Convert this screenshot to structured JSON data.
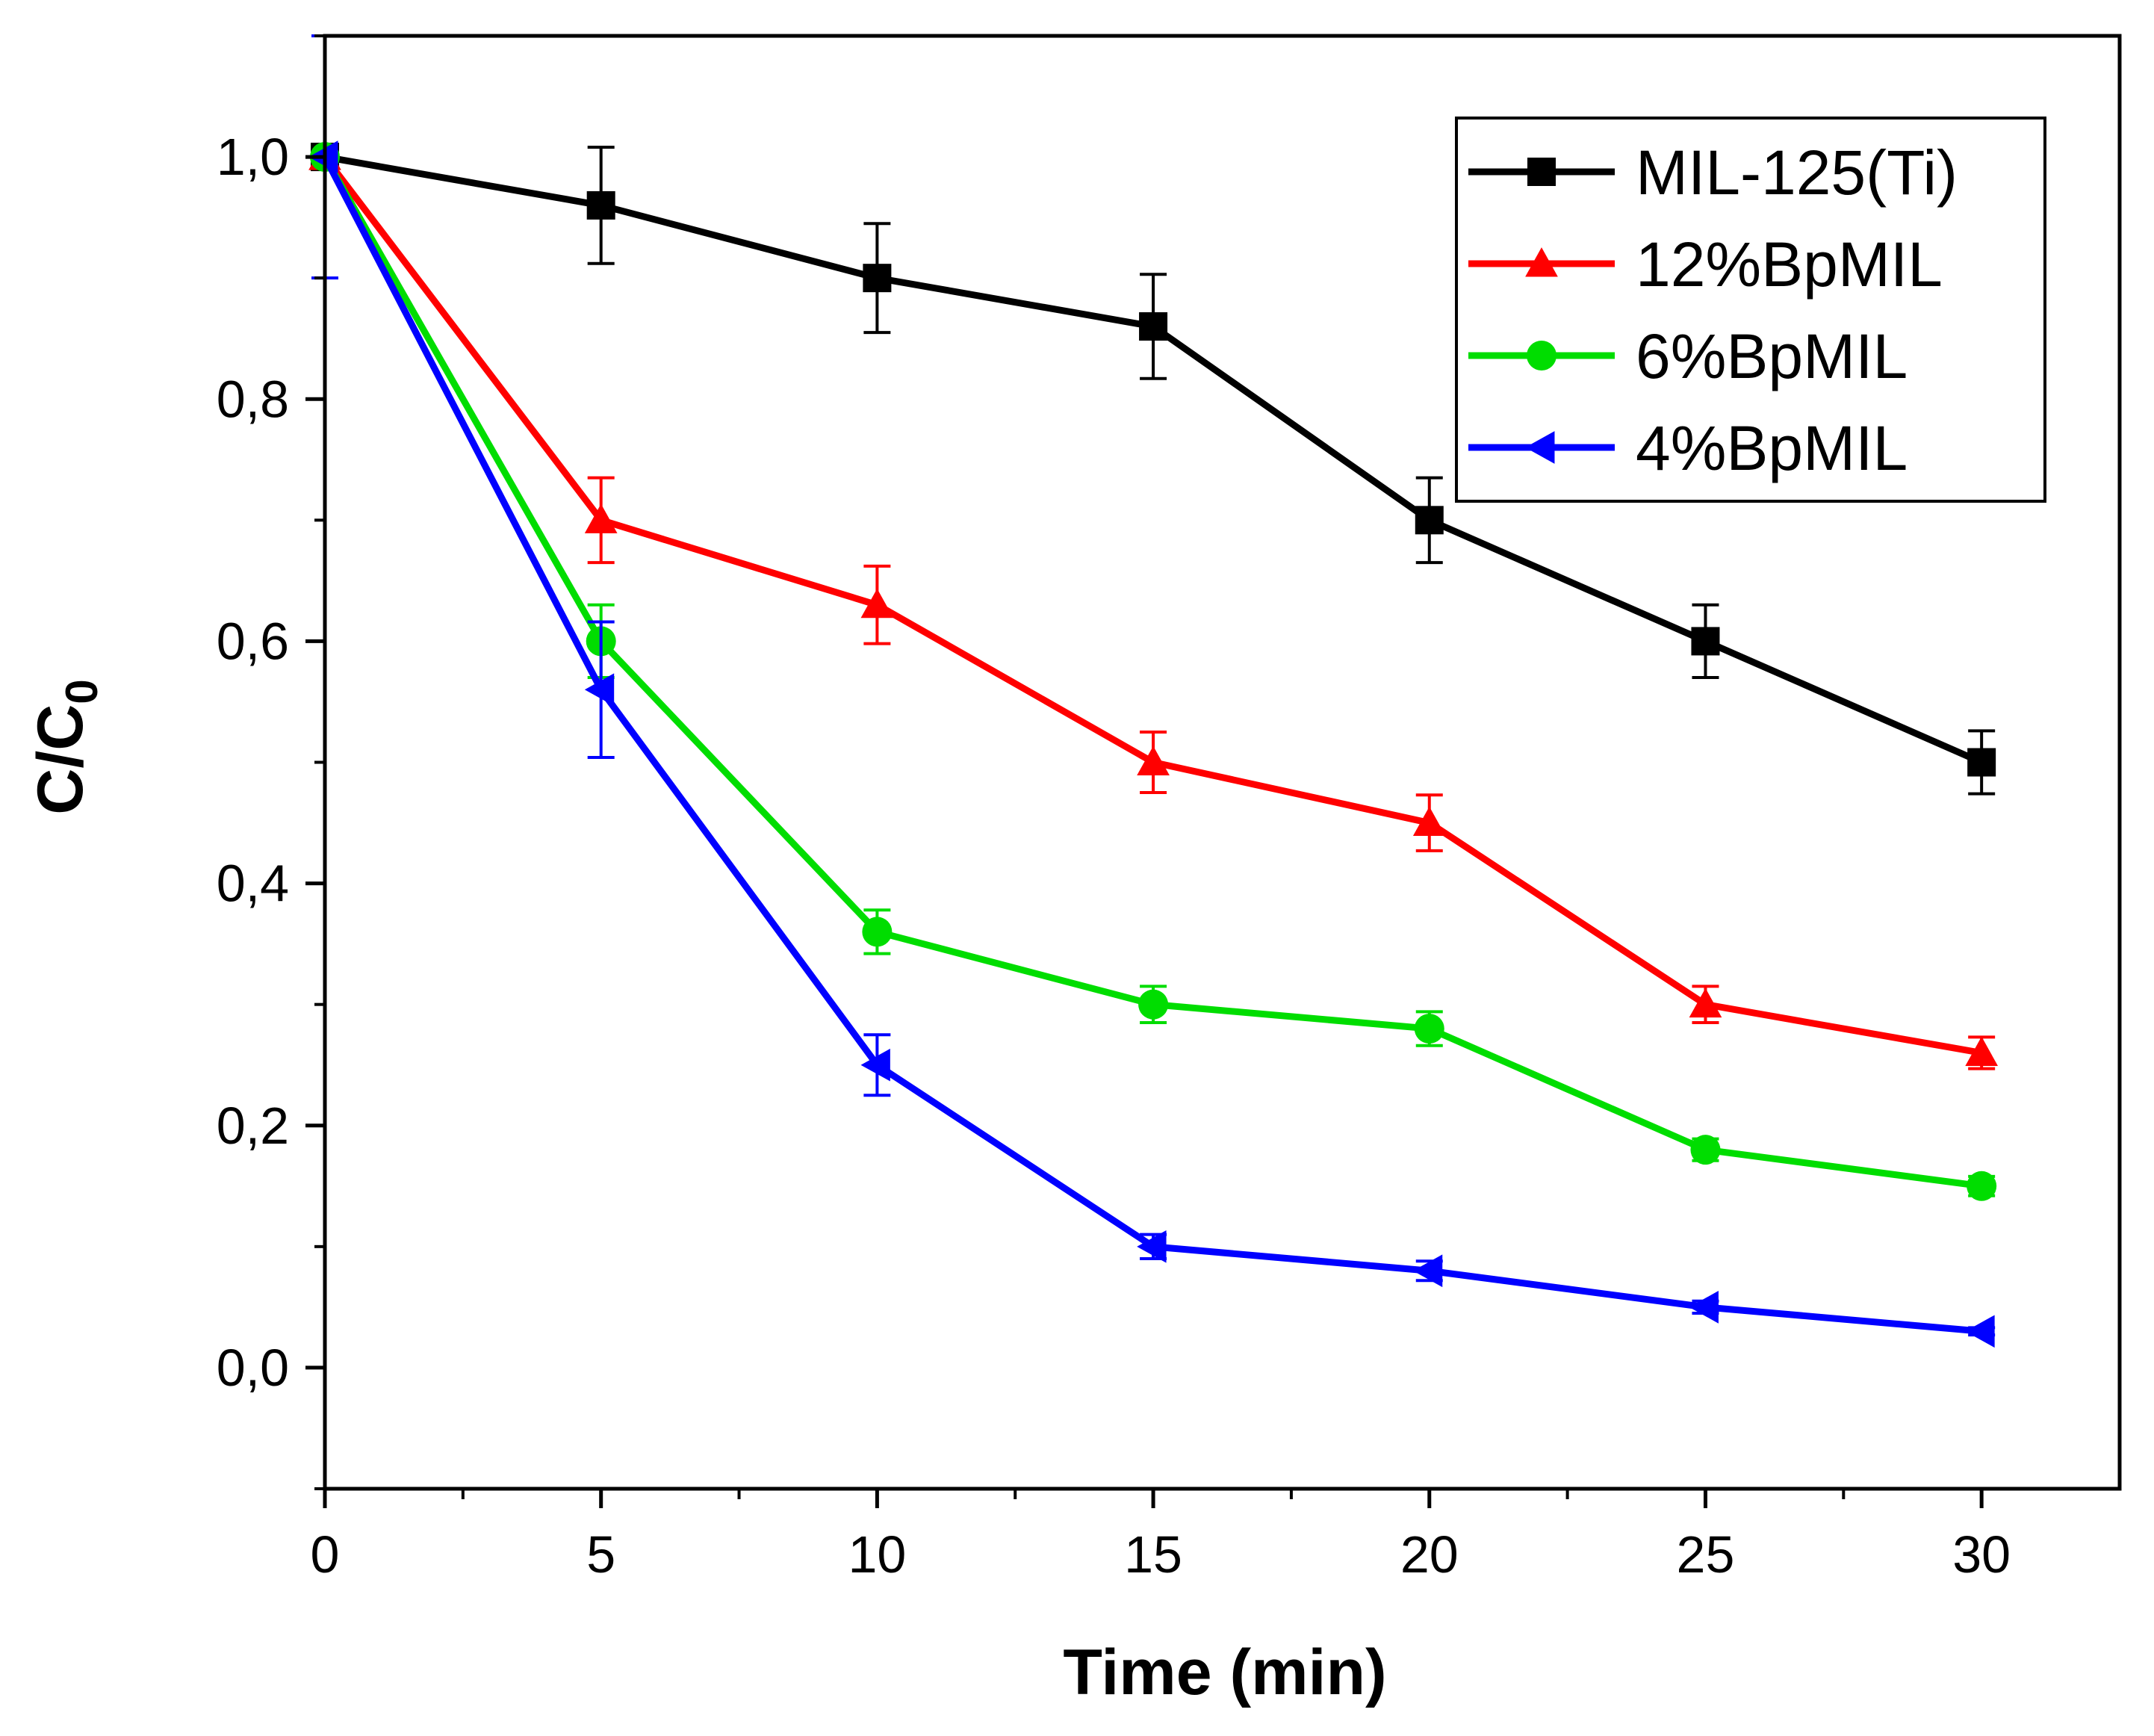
{
  "chart_data": {
    "type": "line",
    "title": "",
    "xlabel": "Time (min)",
    "ylabel": "C/C",
    "ylabel_subscript": "0",
    "xlim": [
      0,
      32.5
    ],
    "ylim": [
      -0.1,
      1.1
    ],
    "x_ticks": [
      0,
      5,
      10,
      15,
      20,
      25,
      30
    ],
    "x_tick_labels": [
      "0",
      "5",
      "10",
      "15",
      "20",
      "25",
      "30"
    ],
    "y_ticks": [
      0.0,
      0.2,
      0.4,
      0.6,
      0.8,
      1.0
    ],
    "y_tick_labels": [
      "0,0",
      "0,2",
      "0,4",
      "0,6",
      "0,8",
      "1,0"
    ],
    "grid": false,
    "legend_position": "top-right",
    "x": [
      0,
      5,
      10,
      15,
      20,
      25,
      30
    ],
    "series": [
      {
        "name": "MIL-125(Ti)",
        "color": "#000000",
        "marker": "square",
        "values": [
          1.0,
          0.96,
          0.9,
          0.86,
          0.7,
          0.6,
          0.5
        ],
        "errors": [
          0.0,
          0.048,
          0.045,
          0.043,
          0.035,
          0.03,
          0.026
        ]
      },
      {
        "name": "12%BpMIL",
        "color": "#ff0000",
        "marker": "triangle-up",
        "values": [
          1.0,
          0.7,
          0.63,
          0.5,
          0.45,
          0.3,
          0.26
        ],
        "errors": [
          0.0,
          0.035,
          0.032,
          0.025,
          0.023,
          0.015,
          0.013
        ]
      },
      {
        "name": "6%BpMIL",
        "color": "#00dd00",
        "marker": "circle",
        "values": [
          1.0,
          0.6,
          0.36,
          0.3,
          0.28,
          0.18,
          0.15
        ],
        "errors": [
          0.0,
          0.03,
          0.018,
          0.015,
          0.014,
          0.009,
          0.008
        ]
      },
      {
        "name": "4%BpMIL",
        "color": "#0000ff",
        "marker": "triangle-left",
        "values": [
          1.0,
          0.56,
          0.25,
          0.1,
          0.08,
          0.05,
          0.03
        ],
        "errors": [
          0.1,
          0.056,
          0.025,
          0.01,
          0.008,
          0.005,
          0.003
        ]
      }
    ]
  }
}
